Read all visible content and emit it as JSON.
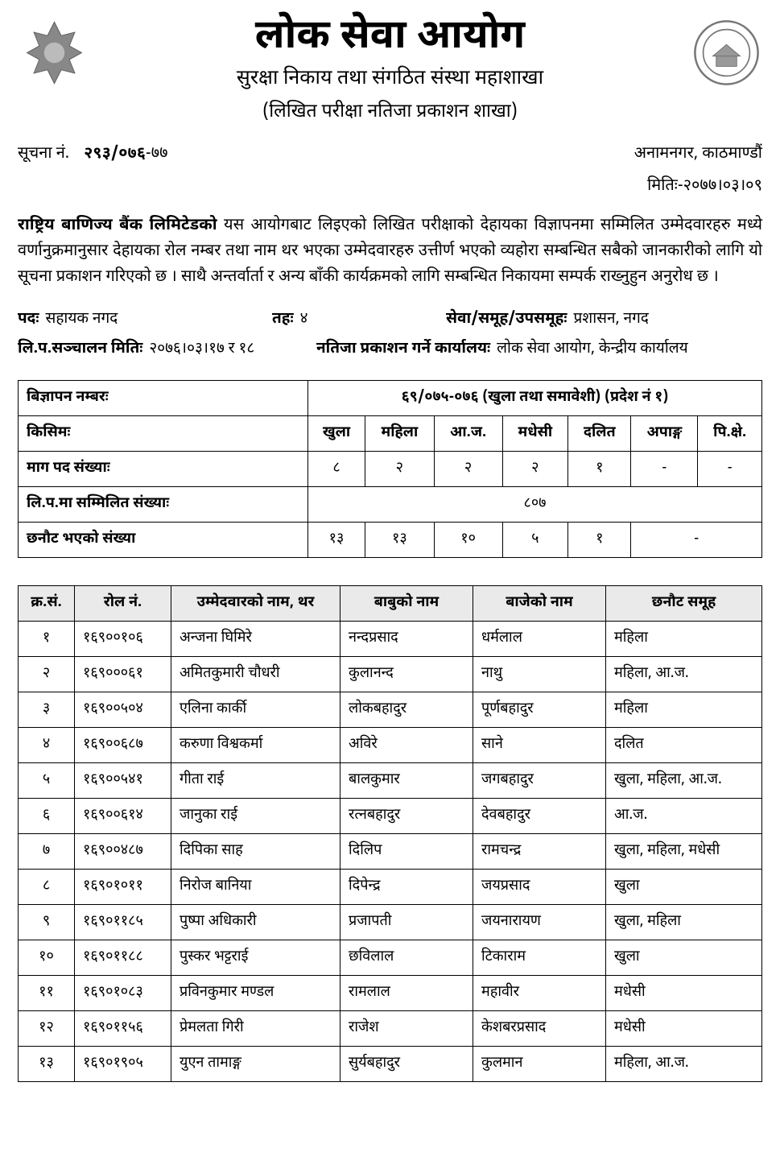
{
  "org_title": "लोक सेवा आयोग",
  "subtitle1": "सुरक्षा निकाय तथा संगठित संस्था महाशाखा",
  "subtitle2": "(लिखित परीक्षा नतिजा प्रकाशन शाखा)",
  "notice_label": "सूचना नं.",
  "notice_no_bold": "२९३/०७६",
  "notice_no_suffix": "-७७",
  "location": "अनामनगर, काठमाण्डौं",
  "date_label": "मितिः-",
  "date_value": "२०७७।०३।०९",
  "body_lead": "राष्ट्रिय बाणिज्य बैंक लिमिटेडको",
  "body_text": " यस आयोगबाट लिइएको लिखित परीक्षाको देहायका विज्ञापनमा सम्मिलित उम्मेदवारहरु मध्ये वर्णानुक्रमानुसार देहायका रोल नम्बर तथा नाम थर भएका उम्मेदवारहरु उत्तीर्ण भएको व्यहोरा सम्बन्धित सबैको जानकारीको लागि यो सूचना प्रकाशन गरिएको छ । साथै अन्तर्वार्ता र अन्य बाँकी कार्यक्रमको लागि सम्बन्धित निकायमा सम्पर्क राख्नुहुन अनुरोध छ ।",
  "info": {
    "post_label": "पदः",
    "post_value": "सहायक नगद",
    "level_label": "तहः",
    "level_value": "४",
    "service_label": "सेवा/समूह/उपसमूहः",
    "service_value": "प्रशासन, नगद",
    "examdate_label": "लि.प.सञ्चालन मितिः",
    "examdate_value": "२०७६।०३।१७ र १८",
    "office_label": "नतिजा प्रकाशन गर्ने कार्यालयः",
    "office_value": "लोक सेवा आयोग, केन्द्रीय कार्यालय"
  },
  "summary": {
    "ad_label": "बिज्ञापन नम्बरः",
    "ad_value": "६९/०७५-०७६ (खुला तथा समावेशी) (प्रदेश नं १)",
    "type_label": "किसिमः",
    "types": [
      "खुला",
      "महिला",
      "आ.ज.",
      "मधेसी",
      "दलित",
      "अपाङ्ग",
      "पि.क्षे."
    ],
    "demand_label": "माग पद संख्याः",
    "demand": [
      "८",
      "२",
      "२",
      "२",
      "१",
      "-",
      "-"
    ],
    "attended_label": "लि.प.मा सम्मिलित संख्याः",
    "attended_value": "८०७",
    "selected_label": "छनौट भएको संख्या",
    "selected_left": [
      "१३",
      "१३",
      "१०",
      "५",
      "१"
    ],
    "selected_right_dash": "-"
  },
  "results_headers": {
    "sn": "क्र.सं.",
    "roll": "रोल नं.",
    "name": "उम्मेदवारको नाम, थर",
    "father": "बाबुको नाम",
    "grand": "बाजेको नाम",
    "group": "छनौट समूह"
  },
  "results": [
    {
      "sn": "१",
      "roll": "१६९००१०६",
      "name": "अन्जना घिमिरे",
      "father": "नन्दप्रसाद",
      "grand": "धर्मलाल",
      "group": "महिला"
    },
    {
      "sn": "२",
      "roll": "१६९०००६१",
      "name": "अमितकुमारी चौधरी",
      "father": "कुलानन्द",
      "grand": "नाथु",
      "group": "महिला, आ.ज."
    },
    {
      "sn": "३",
      "roll": "१६९००५०४",
      "name": "एलिना कार्की",
      "father": "लोकबहादुर",
      "grand": "पूर्णबहादुर",
      "group": "महिला"
    },
    {
      "sn": "४",
      "roll": "१६९००६८७",
      "name": "करुणा विश्वकर्मा",
      "father": "अविरे",
      "grand": "साने",
      "group": "दलित"
    },
    {
      "sn": "५",
      "roll": "१६९००५४१",
      "name": "गीता राई",
      "father": "बालकुमार",
      "grand": "जगबहादुर",
      "group": "खुला, महिला, आ.ज."
    },
    {
      "sn": "६",
      "roll": "१६९००६१४",
      "name": "जानुका राई",
      "father": "रत्नबहादुर",
      "grand": "देवबहादुर",
      "group": "आ.ज."
    },
    {
      "sn": "७",
      "roll": "१६९००४८७",
      "name": "दिपिका साह",
      "father": "दिलिप",
      "grand": "रामचन्द्र",
      "group": "खुला, महिला, मधेसी"
    },
    {
      "sn": "८",
      "roll": "१६९०१०११",
      "name": "निरोज बानिया",
      "father": "दिपेन्द्र",
      "grand": "जयप्रसाद",
      "group": "खुला"
    },
    {
      "sn": "९",
      "roll": "१६९०११८५",
      "name": "पुष्पा अधिकारी",
      "father": "प्रजापती",
      "grand": "जयनारायण",
      "group": "खुला, महिला"
    },
    {
      "sn": "१०",
      "roll": "१६९०११८८",
      "name": "पुस्कर भट्टराई",
      "father": "छविलाल",
      "grand": "टिकाराम",
      "group": "खुला"
    },
    {
      "sn": "११",
      "roll": "१६९०१०८३",
      "name": "प्रविनकुमार मण्डल",
      "father": "रामलाल",
      "grand": "महावीर",
      "group": "मधेसी"
    },
    {
      "sn": "१२",
      "roll": "१६९०११५६",
      "name": "प्रेमलता गिरी",
      "father": "राजेश",
      "grand": "केशबरप्रसाद",
      "group": "मधेसी"
    },
    {
      "sn": "१३",
      "roll": "१६९०१९०५",
      "name": "युएन तामाङ्ग",
      "father": "सुर्यबहादुर",
      "grand": "कुलमान",
      "group": "महिला, आ.ज."
    }
  ]
}
